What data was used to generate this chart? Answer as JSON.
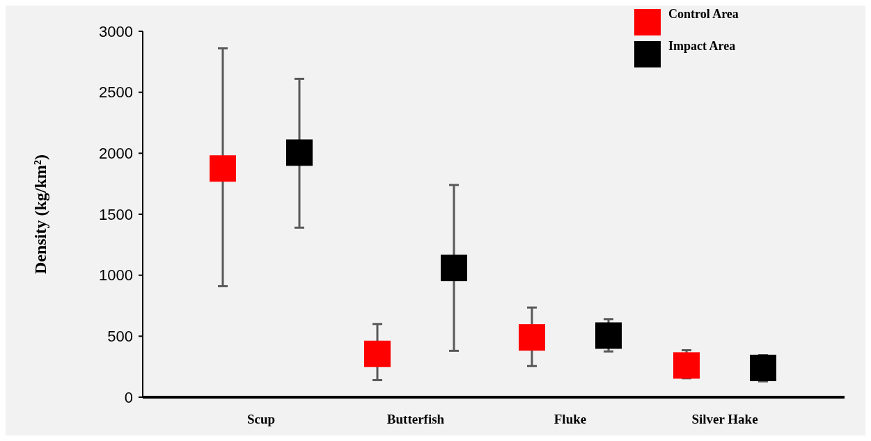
{
  "chart_data": {
    "type": "scatter",
    "ylabel": "Density (kg/km²)",
    "categories": [
      "Scup",
      "Butterfish",
      "Fluke",
      "Silver Hake"
    ],
    "ylim": [
      0,
      3000
    ],
    "yticks": [
      0,
      500,
      1000,
      1500,
      2000,
      2500,
      3000
    ],
    "marker": "square",
    "legend": "top right",
    "grid": false,
    "series": [
      {
        "name": "Control Area",
        "color": "#ff0000",
        "values": [
          1875,
          355,
          490,
          260
        ],
        "errors": [
          [
            910,
            2860
          ],
          [
            140,
            600
          ],
          [
            255,
            735
          ],
          [
            155,
            385
          ]
        ]
      },
      {
        "name": "Impact Area",
        "color": "#000000",
        "values": [
          2005,
          1060,
          505,
          240
        ],
        "errors": [
          [
            1390,
            2610
          ],
          [
            380,
            1740
          ],
          [
            375,
            640
          ],
          [
            130,
            345
          ]
        ]
      }
    ]
  }
}
